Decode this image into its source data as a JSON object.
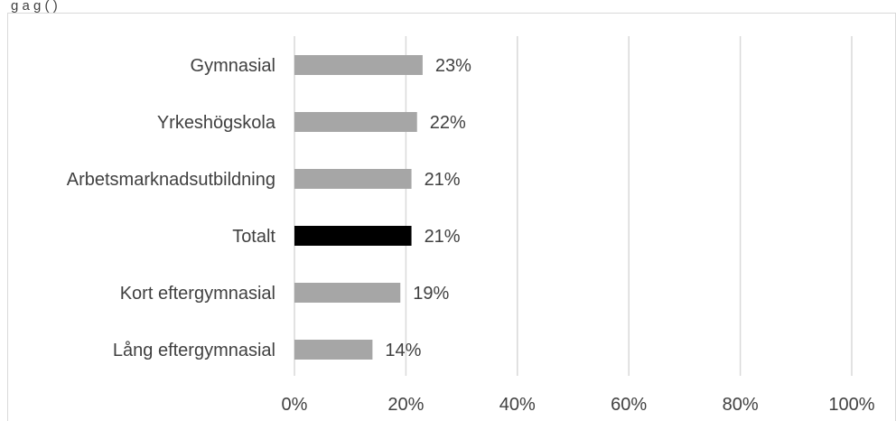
{
  "header_fragment": "g              a                  g    (   )",
  "chart_data": {
    "type": "bar",
    "orientation": "horizontal",
    "categories": [
      "Gymnasial",
      "Yrkeshögskola",
      "Arbetsmarknadsutbildning",
      "Totalt",
      "Kort eftergymnasial",
      "Lång eftergymnasial"
    ],
    "values": [
      23,
      22,
      21,
      21,
      19,
      14
    ],
    "data_labels": [
      "23%",
      "22%",
      "21%",
      "21%",
      "19%",
      "14%"
    ],
    "bar_colors": [
      "#a6a6a6",
      "#a6a6a6",
      "#a6a6a6",
      "#000000",
      "#a6a6a6",
      "#a6a6a6"
    ],
    "x_ticks": [
      0,
      20,
      40,
      60,
      80,
      100
    ],
    "x_tick_labels": [
      "0%",
      "20%",
      "40%",
      "60%",
      "80%",
      "100%"
    ],
    "xlim": [
      0,
      100
    ],
    "grid": "vertical",
    "legend": "none"
  }
}
